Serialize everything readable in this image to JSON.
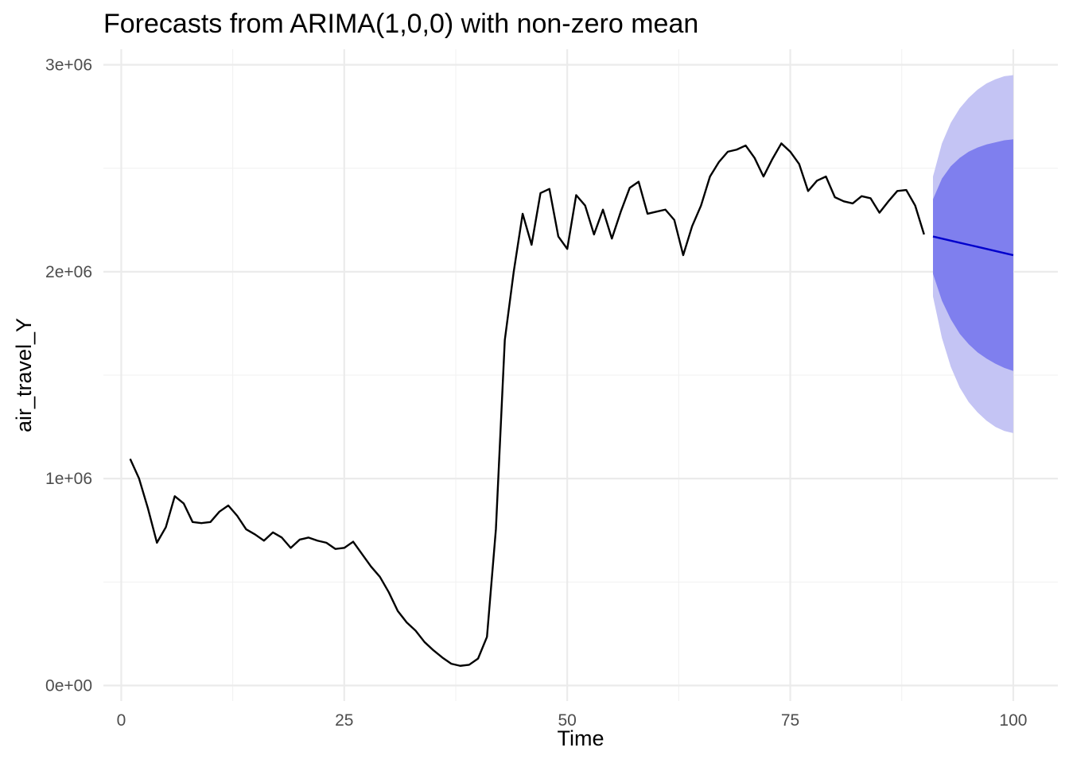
{
  "chart_data": {
    "type": "line",
    "title": "Forecasts from ARIMA(1,0,0) with non-zero mean",
    "xlabel": "Time",
    "ylabel": "air_travel_Y",
    "xlim": [
      -2,
      105
    ],
    "ylim": [
      -75000,
      3075000
    ],
    "x_ticks": [
      0,
      25,
      50,
      75,
      100
    ],
    "x_tick_labels": [
      "0",
      "25",
      "50",
      "75",
      "100"
    ],
    "y_ticks": [
      0,
      1000000,
      2000000,
      3000000
    ],
    "y_tick_labels": [
      "0e+00",
      "1e+06",
      "2e+06",
      "3e+06"
    ],
    "grid": true,
    "legend": "none",
    "colors": {
      "observed": "#000000",
      "forecast": "#0000cc",
      "interval_80": "#7f7fee",
      "interval_95": "#c4c4f4",
      "grid": "#ebebeb"
    },
    "series": [
      {
        "x_start": 1,
        "values": [
          1095000,
          1000000,
          855000,
          690000,
          765000,
          915000,
          880000,
          790000,
          785000,
          790000,
          840000,
          870000,
          820000,
          755000,
          730000,
          700000,
          740000,
          715000,
          665000,
          705000,
          715000,
          700000,
          690000,
          660000,
          665000,
          695000,
          635000,
          575000,
          525000,
          450000,
          360000,
          305000,
          265000,
          210000,
          170000,
          135000,
          105000,
          95000,
          100000,
          130000,
          235000,
          755000,
          1670000,
          2000000,
          2280000,
          2130000,
          2380000,
          2400000,
          2170000,
          2110000,
          2370000,
          2320000,
          2180000,
          2300000,
          2160000,
          2290000,
          2405000,
          2435000,
          2280000,
          2290000,
          2300000,
          2250000,
          2080000,
          2220000,
          2320000,
          2460000,
          2530000,
          2580000,
          2590000,
          2610000,
          2550000,
          2460000,
          2545000,
          2620000,
          2580000,
          2520000,
          2390000,
          2440000,
          2460000,
          2360000,
          2340000,
          2330000,
          2365000,
          2355000,
          2285000,
          2340000,
          2390000,
          2395000,
          2320000,
          2180000
        ]
      },
      {
        "x_start": 91,
        "values": [
          2170000,
          2160000,
          2150000,
          2140000,
          2130000,
          2120000,
          2110000,
          2100000,
          2090000,
          2080000
        ],
        "lower_80": [
          1990000,
          1860000,
          1770000,
          1700000,
          1650000,
          1610000,
          1580000,
          1555000,
          1535000,
          1520000
        ],
        "upper_80": [
          2350000,
          2450000,
          2510000,
          2550000,
          2580000,
          2600000,
          2615000,
          2625000,
          2635000,
          2640000
        ],
        "lower_95": [
          1880000,
          1680000,
          1540000,
          1440000,
          1370000,
          1320000,
          1280000,
          1250000,
          1230000,
          1220000
        ],
        "upper_95": [
          2460000,
          2620000,
          2720000,
          2790000,
          2840000,
          2880000,
          2910000,
          2930000,
          2945000,
          2950000
        ]
      }
    ]
  }
}
